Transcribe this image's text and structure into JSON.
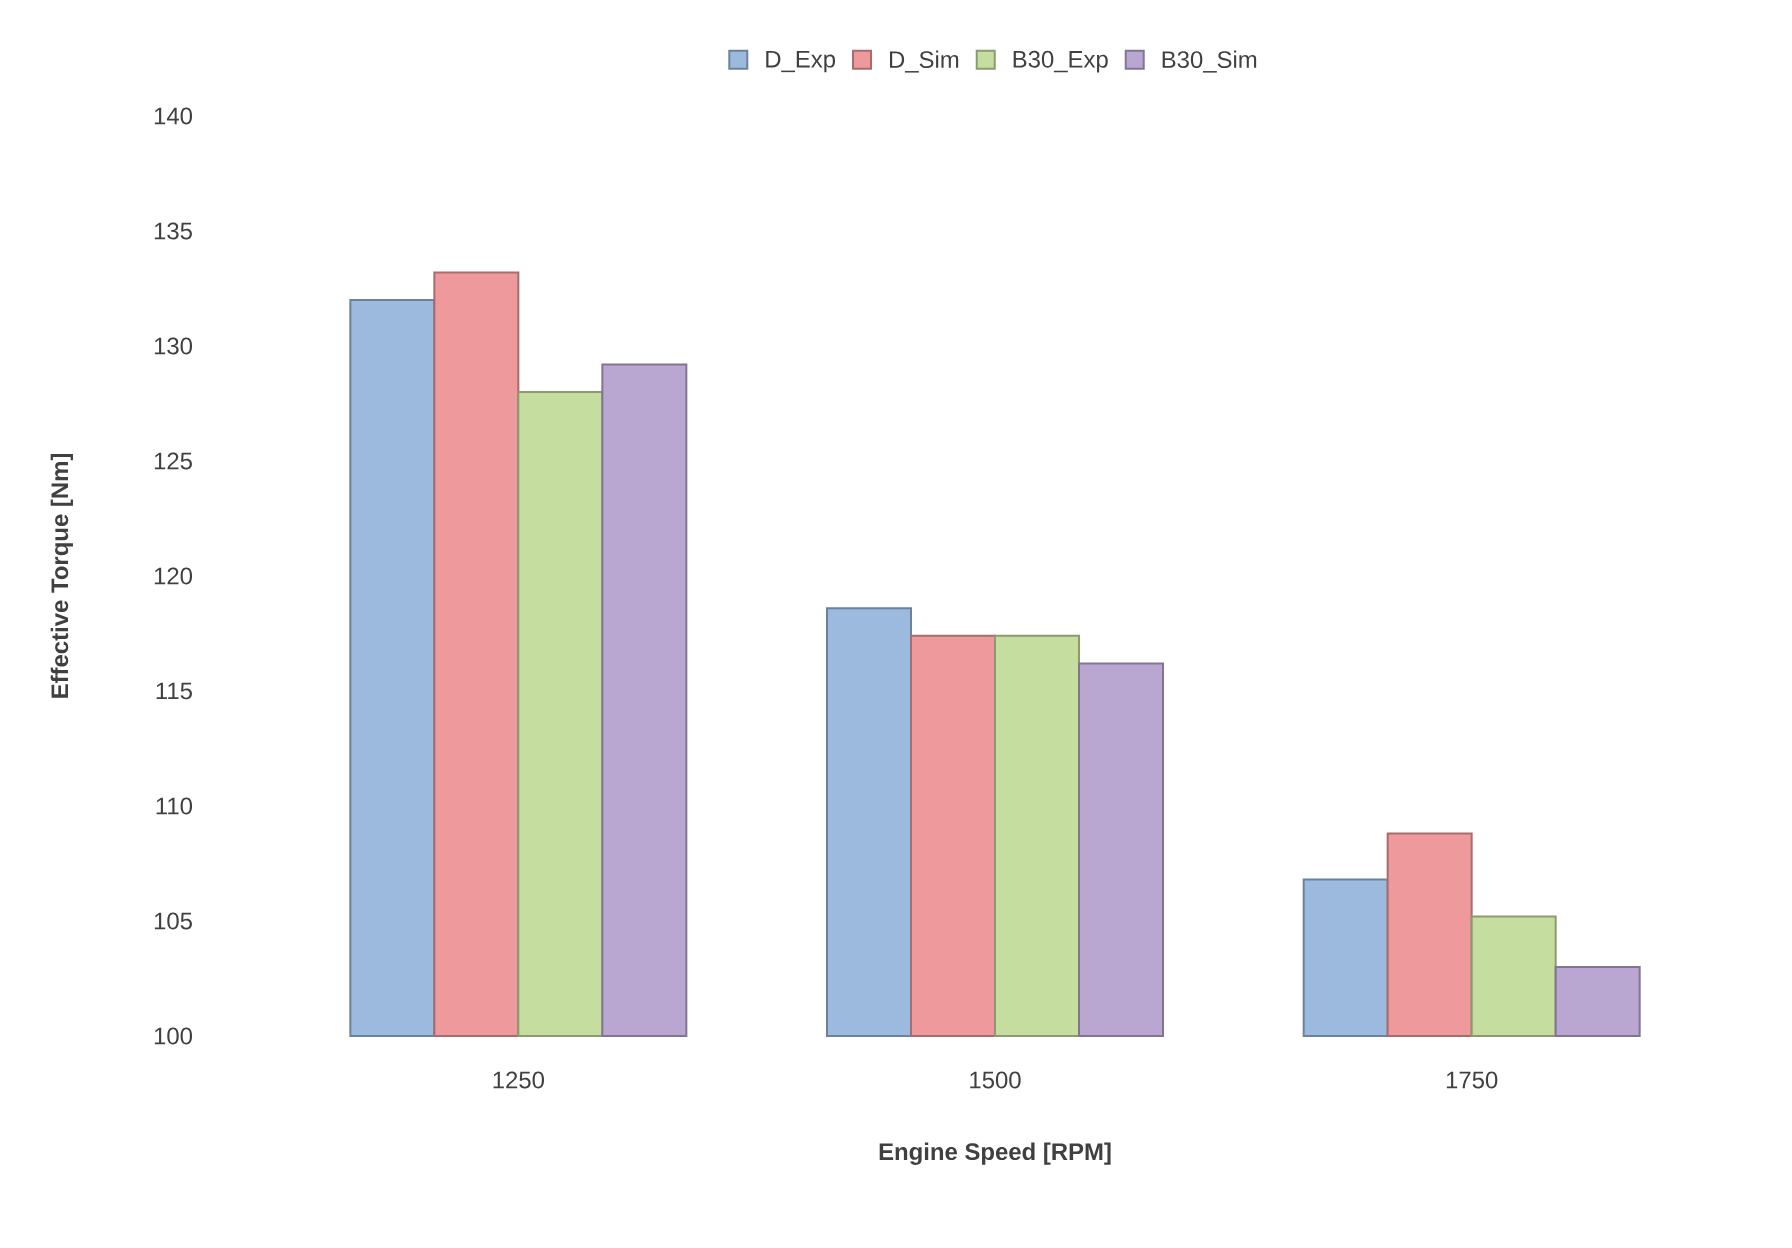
{
  "chart_data": {
    "type": "bar",
    "xlabel": "Engine Speed [RPM]",
    "ylabel": "Effective Torque [Nm]",
    "categories": [
      "1250",
      "1500",
      "1750"
    ],
    "series": [
      {
        "name": "D_Exp",
        "color": "#9cb9de",
        "values": [
          132,
          118.6,
          106.8
        ]
      },
      {
        "name": "D_Sim",
        "color": "#ee9a9c",
        "values": [
          133.2,
          117.4,
          108.8
        ]
      },
      {
        "name": "B30_Exp",
        "color": "#c5de9f",
        "values": [
          128,
          117.4,
          105.2
        ]
      },
      {
        "name": "B30_Sim",
        "color": "#b9a7d1",
        "values": [
          129.2,
          116.2,
          103
        ]
      }
    ],
    "ylim": [
      100,
      140
    ],
    "yticks": [
      100,
      105,
      110,
      115,
      120,
      125,
      130,
      135,
      140
    ],
    "legend": "top",
    "grid": false
  }
}
